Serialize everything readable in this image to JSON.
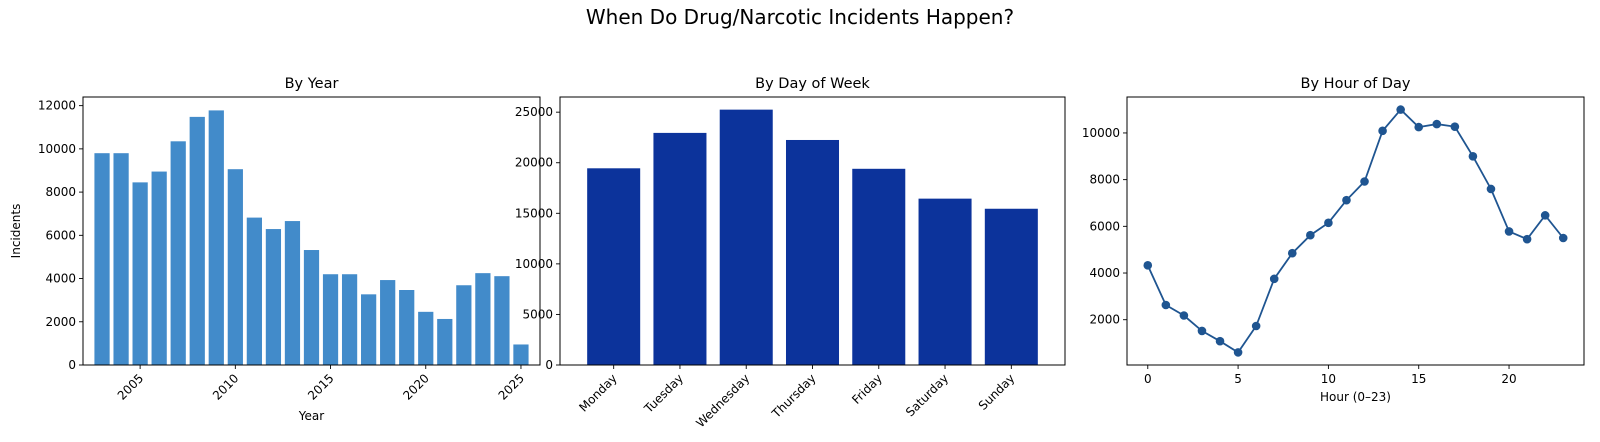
{
  "figure": {
    "title": "When Do Drug/Narcotic Incidents Happen?"
  },
  "chart_data": [
    {
      "type": "bar",
      "title": "By Year",
      "xlabel": "Year",
      "ylabel": "Incidents",
      "color": "#428bca",
      "categories": [
        2003,
        2004,
        2005,
        2006,
        2007,
        2008,
        2009,
        2010,
        2011,
        2012,
        2013,
        2014,
        2015,
        2016,
        2017,
        2018,
        2019,
        2020,
        2021,
        2022,
        2023,
        2024,
        2025
      ],
      "values": [
        9800,
        9800,
        8450,
        8950,
        10350,
        11480,
        11780,
        9060,
        6820,
        6290,
        6660,
        5320,
        4200,
        4200,
        3270,
        3930,
        3470,
        2460,
        2130,
        3690,
        4250,
        4110,
        950
      ],
      "xlim": [
        2002,
        2026
      ],
      "ylim": [
        0,
        12400
      ],
      "xticks": [
        "2005",
        "2010",
        "2015",
        "2020",
        "2025"
      ],
      "yticks": [
        "0",
        "2000",
        "4000",
        "6000",
        "8000",
        "10000",
        "12000"
      ],
      "grid": false
    },
    {
      "type": "bar",
      "title": "By Day of Week",
      "xlabel": "",
      "ylabel": "",
      "color": "#0c339b",
      "categories": [
        "Monday",
        "Tuesday",
        "Wednesday",
        "Thursday",
        "Friday",
        "Saturday",
        "Sunday"
      ],
      "values": [
        19450,
        22950,
        25250,
        22250,
        19400,
        16450,
        15450
      ],
      "ylim": [
        0,
        26500
      ],
      "yticks": [
        "0",
        "5000",
        "10000",
        "15000",
        "20000",
        "25000"
      ],
      "grid": false
    },
    {
      "type": "line",
      "title": "By Hour of Day",
      "xlabel": "Hour (0–23)",
      "ylabel": "",
      "color": "#1f5591",
      "x": [
        0,
        1,
        2,
        3,
        4,
        5,
        6,
        7,
        8,
        9,
        10,
        11,
        12,
        13,
        14,
        15,
        16,
        17,
        18,
        19,
        20,
        21,
        22,
        23
      ],
      "values": [
        4330,
        2630,
        2180,
        1520,
        1080,
        600,
        1730,
        3750,
        4850,
        5620,
        6150,
        7120,
        7920,
        10090,
        11000,
        10250,
        10380,
        10270,
        9000,
        7600,
        5780,
        5450,
        6470,
        5500
      ],
      "xlim": [
        -1.15,
        24.15
      ],
      "ylim": [
        60,
        11540
      ],
      "xticks": [
        "0",
        "5",
        "10",
        "15",
        "20"
      ],
      "yticks": [
        "2000",
        "4000",
        "6000",
        "8000",
        "10000"
      ],
      "grid": false
    }
  ]
}
